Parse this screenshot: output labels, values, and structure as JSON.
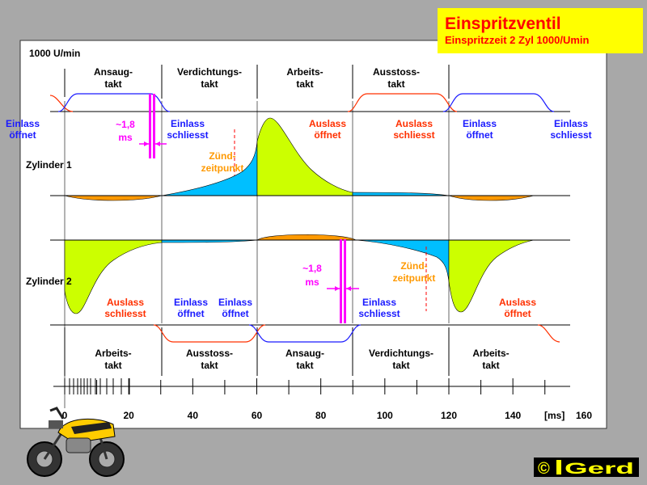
{
  "title": {
    "main": "Einspritzventil",
    "sub": "Einspritzzeit 2 Zyl 1000/Umin",
    "bg_color": "#ffff00",
    "text_color": "#ff0000"
  },
  "rpm_label": "1000 U/min",
  "cyl1": {
    "name": "Zylinder 1",
    "strokes": [
      {
        "l1": "Ansaug-",
        "l2": "takt"
      },
      {
        "l1": "Verdichtungs-",
        "l2": "takt"
      },
      {
        "l1": "Arbeits-",
        "l2": "takt"
      },
      {
        "l1": "Ausstoss-",
        "l2": "takt"
      }
    ],
    "valve_events": [
      {
        "l1": "Einlass",
        "l2": "öffnet",
        "color": "blue"
      },
      {
        "l1": "Einlass",
        "l2": "schliesst",
        "color": "blue"
      },
      {
        "l1": "Auslass",
        "l2": "öffnet",
        "color": "red"
      },
      {
        "l1": "Auslass",
        "l2": "schliesst",
        "color": "red"
      },
      {
        "l1": "Einlass",
        "l2": "öffnet",
        "color": "blue"
      },
      {
        "l1": "Einlass",
        "l2": "schliesst",
        "color": "blue"
      }
    ],
    "injection": {
      "l1": "~1,8",
      "l2": "ms"
    },
    "ignition": {
      "l1": "Zünd-",
      "l2": "zeitpunkt"
    }
  },
  "cyl2": {
    "name": "Zylinder 2",
    "strokes": [
      {
        "l1": "Arbeits-",
        "l2": "takt"
      },
      {
        "l1": "Ausstoss-",
        "l2": "takt"
      },
      {
        "l1": "Ansaug-",
        "l2": "takt"
      },
      {
        "l1": "Verdichtungs-",
        "l2": "takt"
      },
      {
        "l1": "Arbeits-",
        "l2": "takt"
      }
    ],
    "valve_events": [
      {
        "l1": "Auslass",
        "l2": "schliesst",
        "color": "red"
      },
      {
        "l1": "Einlass",
        "l2": "öffnet",
        "color": "blue"
      },
      {
        "l1": "Einlass",
        "l2": "öffnet",
        "color": "blue"
      },
      {
        "l1": "Einlass",
        "l2": "schliesst",
        "color": "blue"
      },
      {
        "l1": "Auslass",
        "l2": "öffnet",
        "color": "red"
      }
    ],
    "injection": {
      "l1": "~1,8",
      "l2": "ms"
    },
    "ignition": {
      "l1": "Zünd-",
      "l2": "zeitpunkt"
    }
  },
  "axis": {
    "ticks": [
      "0",
      "20",
      "40",
      "60",
      "80",
      "100",
      "120",
      "140",
      "160"
    ],
    "unit": "[ms]"
  },
  "copyright": {
    "symbol": "©",
    "name": "Gerd"
  },
  "colors": {
    "intake": "#1a1aff",
    "exhaust": "#ff3000",
    "injection": "#ff00ff",
    "ignition": "#ff9900",
    "compression": "#00bfff",
    "power": "#ccff00",
    "suction": "#ff9900"
  }
}
